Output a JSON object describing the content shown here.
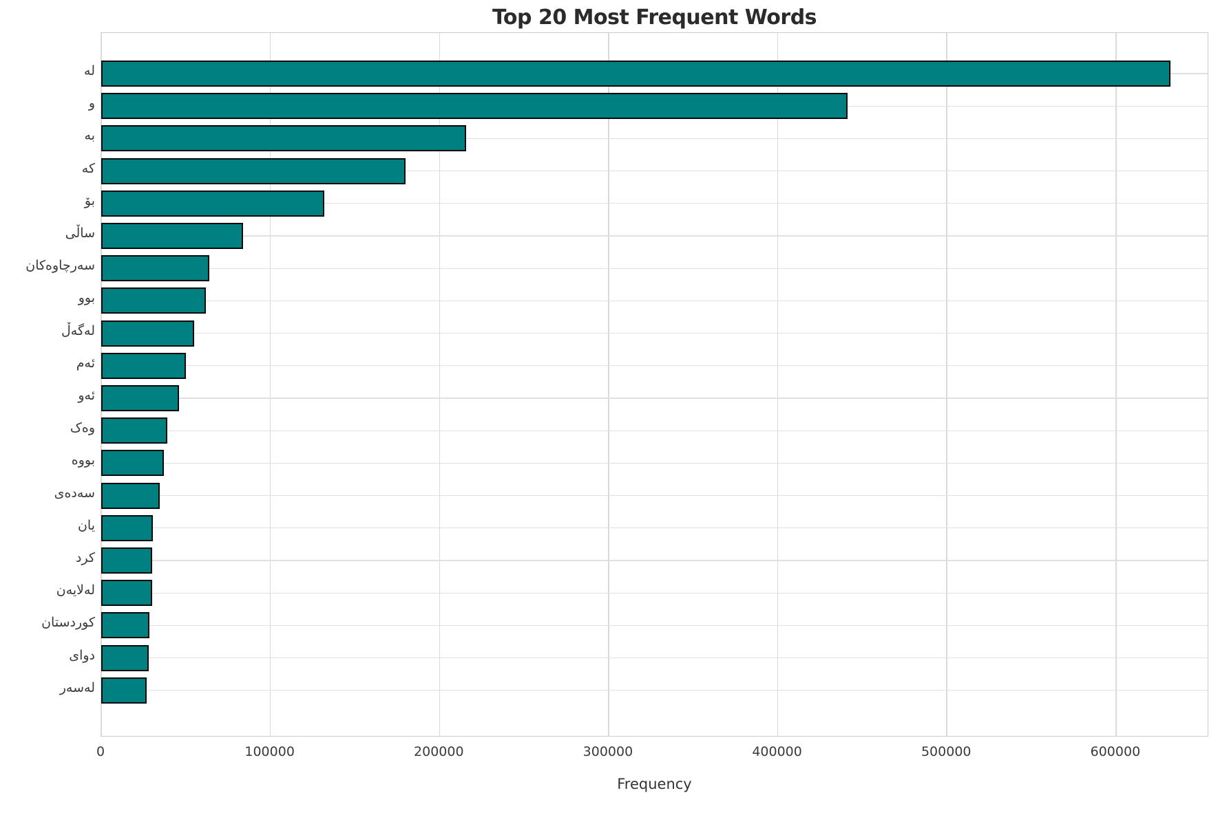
{
  "title": "Top 20 Most Frequent Words",
  "chart_data": {
    "type": "bar",
    "orientation": "horizontal",
    "title": "Top 20 Most Frequent Words",
    "xlabel": "Frequency",
    "ylabel": "",
    "categories": [
      "لە",
      "و",
      "بە",
      "کە",
      "بۆ",
      "ساڵی",
      "سەرچاوەکان",
      "بوو",
      "لەگەڵ",
      "ئەم",
      "ئەو",
      "وەک",
      "بووە",
      "سەدەی",
      "یان",
      "کرد",
      "لەلایەن",
      "کوردستان",
      "دوای",
      "لەسەر"
    ],
    "values": [
      633000,
      442000,
      216000,
      180000,
      132000,
      84000,
      64000,
      62000,
      55000,
      50000,
      46000,
      39000,
      37000,
      34500,
      30500,
      30000,
      30000,
      28500,
      28000,
      27000
    ],
    "xlim": [
      0,
      655000
    ],
    "x_ticks": [
      0,
      100000,
      200000,
      300000,
      400000,
      500000,
      600000
    ],
    "grid": true,
    "legend": "none",
    "bar_color": "#008080",
    "bar_edge_color": "#0a0a0a"
  }
}
